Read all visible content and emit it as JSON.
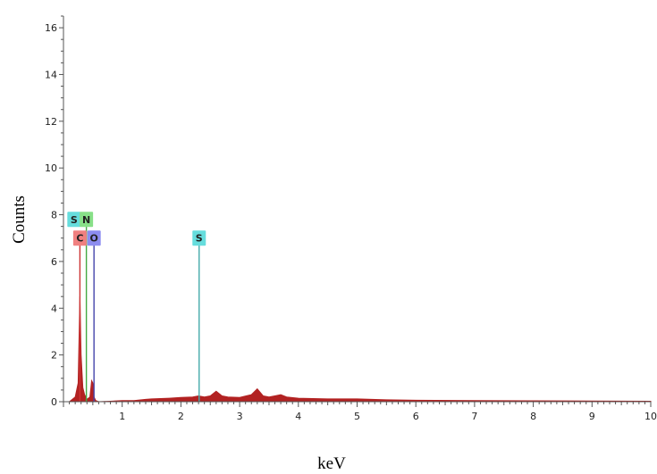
{
  "chart_data": {
    "type": "area",
    "xlabel": "keV",
    "ylabel": "Counts",
    "xlim": [
      0,
      10
    ],
    "ylim": [
      0,
      16.5
    ],
    "x_ticks": [
      "1",
      "2",
      "3",
      "4",
      "5",
      "6",
      "7",
      "8",
      "9",
      "10"
    ],
    "y_ticks": [
      "0",
      "2",
      "4",
      "6",
      "8",
      "10",
      "12",
      "14",
      "16"
    ],
    "y_tick_values": [
      0,
      2,
      4,
      6,
      8,
      10,
      12,
      14,
      16
    ],
    "x_tick_values": [
      1,
      2,
      3,
      4,
      5,
      6,
      7,
      8,
      9,
      10
    ],
    "spectrum": {
      "color": "#b22222",
      "x": [
        0.0,
        0.1,
        0.2,
        0.25,
        0.28,
        0.3,
        0.33,
        0.36,
        0.4,
        0.45,
        0.48,
        0.5,
        0.52,
        0.55,
        0.6,
        0.8,
        1.0,
        1.2,
        1.4,
        1.5,
        1.8,
        2.0,
        2.2,
        2.3,
        2.4,
        2.5,
        2.6,
        2.7,
        2.8,
        3.0,
        3.2,
        3.3,
        3.4,
        3.5,
        3.6,
        3.7,
        3.8,
        4.0,
        4.5,
        5.0,
        5.5,
        6.0,
        7.0,
        8.0,
        9.0,
        10.0
      ],
      "y": [
        0.0,
        0.0,
        0.2,
        0.8,
        4.5,
        2.0,
        0.6,
        0.3,
        0.1,
        0.2,
        0.9,
        0.8,
        0.2,
        0.05,
        0.0,
        0.02,
        0.05,
        0.05,
        0.1,
        0.12,
        0.15,
        0.18,
        0.2,
        0.25,
        0.2,
        0.25,
        0.45,
        0.25,
        0.2,
        0.18,
        0.3,
        0.55,
        0.25,
        0.2,
        0.25,
        0.3,
        0.2,
        0.15,
        0.12,
        0.12,
        0.08,
        0.06,
        0.05,
        0.04,
        0.03,
        0.02
      ]
    },
    "peak_labels": [
      {
        "label": "S",
        "x": 0.18,
        "y": 7.8,
        "line_top": 7.8,
        "color": "#66dddd",
        "text_color": "#222"
      },
      {
        "label": "N",
        "x": 0.39,
        "y": 7.8,
        "line_top": 7.8,
        "color": "#88e088",
        "text_color": "#222"
      },
      {
        "label": "C",
        "x": 0.28,
        "y": 7.0,
        "line_top": 7.0,
        "color": "#f08080",
        "text_color": "#222"
      },
      {
        "label": "O",
        "x": 0.52,
        "y": 7.0,
        "line_top": 7.0,
        "color": "#8c8cf0",
        "text_color": "#222"
      },
      {
        "label": "S",
        "x": 2.31,
        "y": 7.0,
        "line_top": 7.0,
        "color": "#66dddd",
        "text_color": "#222"
      }
    ],
    "peak_lines": [
      {
        "x": 0.28,
        "top": 7.0,
        "color": "#cc3333"
      },
      {
        "x": 0.39,
        "top": 7.8,
        "color": "#44aa44"
      },
      {
        "x": 0.52,
        "top": 7.0,
        "color": "#4444aa"
      },
      {
        "x": 2.31,
        "top": 7.0,
        "color": "#44aaaa"
      }
    ]
  }
}
